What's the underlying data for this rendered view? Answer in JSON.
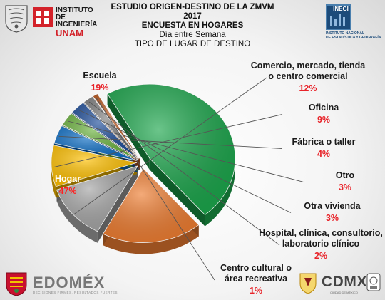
{
  "header": {
    "title_line1": "ESTUDIO ORIGEN-DESTINO DE LA ZMVM 2017",
    "title_line2": "ENCUESTA EN HOGARES",
    "subtitle": "Día entre Semana",
    "chart_title": "TIPO DE LUGAR DE DESTINO"
  },
  "logos": {
    "unam_line1": "INSTITUTO",
    "unam_line2": "DE INGENIERÍA",
    "unam_line3": "UNAM",
    "inegi_name": "INEGI",
    "inegi_caption_1": "INSTITUTO NACIONAL",
    "inegi_caption_2": "DE ESTADÍSTICA Y GEOGRAFÍA",
    "edomex": "EDOMÉX",
    "edomex_tagline": "DECISIONES FIRMES, RESULTADOS FUERTES.",
    "cdmx": "CDMX",
    "cdmx_sub": "CIUDAD DE MÉXICO"
  },
  "chart_data": {
    "type": "pie",
    "title": "TIPO DE LUGAR DE DESTINO",
    "slices": [
      {
        "label": "Hogar",
        "value": 47,
        "display": "47%",
        "color": "#1ca64c"
      },
      {
        "label": "Escuela",
        "value": 19,
        "display": "19%",
        "color": "#ee7d31"
      },
      {
        "label": "Comercio, mercado, tienda o centro comercial",
        "value": 12,
        "display": "12%",
        "color": "#a5a5a5"
      },
      {
        "label": "Oficina",
        "value": 9,
        "display": "9%",
        "color": "#ffc000"
      },
      {
        "label": "Fábrica o taller",
        "value": 4,
        "display": "4%",
        "color": "#0f6fc6"
      },
      {
        "label": "Otro",
        "value": 3,
        "display": "3%",
        "color": "#6cb33f"
      },
      {
        "label": "Otra vivienda",
        "value": 3,
        "display": "3%",
        "color": "#1f4e9a"
      },
      {
        "label": "Hospital, clínica, consultorio, laboratorio clínico",
        "value": 2,
        "display": "2%",
        "color": "#7f7f7f"
      },
      {
        "label": "Centro cultural o área recreativa",
        "value": 1,
        "display": "1%",
        "color": "#b8561c"
      }
    ],
    "value_color": "#e8242a",
    "legend": "none"
  }
}
